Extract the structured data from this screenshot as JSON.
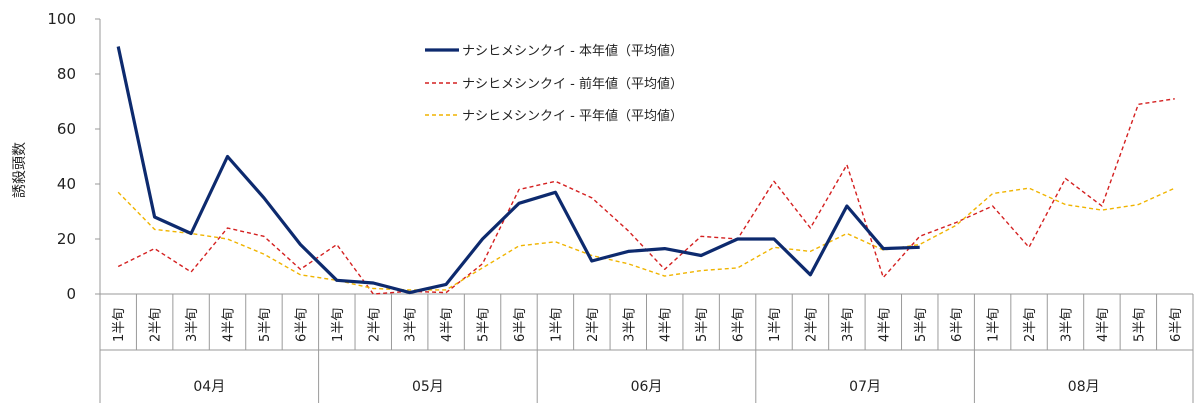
{
  "chart_data": {
    "type": "line",
    "ylabel": "誘殺頭数",
    "ylim": [
      0,
      100
    ],
    "yticks": [
      0,
      20,
      40,
      60,
      80,
      100
    ],
    "months": [
      "04月",
      "05月",
      "06月",
      "07月",
      "08月"
    ],
    "categories": [
      "1半旬",
      "2半旬",
      "3半旬",
      "4半旬",
      "5半旬",
      "6半旬",
      "1半旬",
      "2半旬",
      "3半旬",
      "4半旬",
      "5半旬",
      "6半旬",
      "1半旬",
      "2半旬",
      "3半旬",
      "4半旬",
      "5半旬",
      "6半旬",
      "1半旬",
      "2半旬",
      "3半旬",
      "4半旬",
      "5半旬",
      "6半旬",
      "1半旬",
      "2半旬",
      "3半旬",
      "4半旬",
      "5半旬",
      "6半旬"
    ],
    "legend_position": "top-center",
    "grid": false,
    "series": [
      {
        "name": "ナシヒメシンクイ - 本年値（平均値）",
        "color": "#0d2a6e",
        "style": "solid",
        "values": [
          90,
          28,
          22,
          50,
          35,
          18,
          5,
          4,
          0.5,
          3.5,
          20,
          33,
          37,
          12,
          15.5,
          16.5,
          14,
          20,
          20,
          7,
          32,
          16.5,
          17,
          null,
          null,
          null,
          null,
          null,
          null,
          null
        ]
      },
      {
        "name": "ナシヒメシンクイ - 前年値（平均値）",
        "color": "#d42020",
        "style": "dashed",
        "values": [
          10,
          16.5,
          8,
          24,
          21,
          9,
          18,
          0,
          1,
          0.5,
          11,
          38,
          41,
          35,
          23,
          9,
          21,
          20,
          41,
          24,
          47,
          6,
          21,
          26,
          32,
          17,
          42,
          32,
          69,
          71
        ]
      },
      {
        "name": "ナシヒメシンクイ - 平年値（平均値）",
        "color": "#f0b400",
        "style": "dashed",
        "values": [
          37,
          23.5,
          22,
          20,
          14.5,
          7,
          5,
          2,
          1.5,
          1.5,
          9.5,
          17.5,
          19,
          14,
          11,
          6.5,
          8.5,
          9.5,
          17,
          15.5,
          22,
          16,
          18,
          25,
          36.5,
          38.5,
          32.5,
          30.5,
          32.5,
          38.5
        ]
      }
    ]
  }
}
